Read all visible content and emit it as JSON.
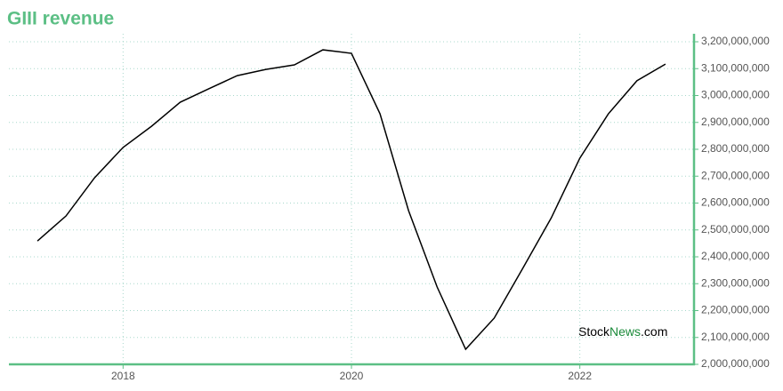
{
  "chart_data": {
    "type": "line",
    "title": "GIII revenue",
    "x": [
      2017.25,
      2017.5,
      2017.75,
      2018.0,
      2018.25,
      2018.5,
      2018.75,
      2019.0,
      2019.25,
      2019.5,
      2019.75,
      2020.0,
      2020.25,
      2020.5,
      2020.75,
      2021.0,
      2021.25,
      2021.5,
      2021.75,
      2022.0,
      2022.25,
      2022.5,
      2022.75
    ],
    "series": [
      {
        "name": "GIII revenue",
        "color": "#000000",
        "values": [
          2459000000,
          2552000000,
          2694000000,
          2807000000,
          2886000000,
          2975000000,
          3025000000,
          3074000000,
          3097000000,
          3114000000,
          3170000000,
          3157000000,
          2932000000,
          2572000000,
          2288000000,
          2056000000,
          2172000000,
          2357000000,
          2545000000,
          2767000000,
          2932000000,
          3055000000,
          3117000000
        ]
      }
    ],
    "xlim": [
      2017.0,
      2023.0
    ],
    "xticks": [
      2018,
      2020,
      2022
    ],
    "ylim": [
      2000000000,
      3200000000
    ],
    "yticks": [
      {
        "value": 2000000000,
        "label": "2,000,000,000"
      },
      {
        "value": 2100000000,
        "label": "2,100,000,000"
      },
      {
        "value": 2200000000,
        "label": "2,200,000,000"
      },
      {
        "value": 2300000000,
        "label": "2,300,000,000"
      },
      {
        "value": 2400000000,
        "label": "2,400,000,000"
      },
      {
        "value": 2500000000,
        "label": "2,500,000,000"
      },
      {
        "value": 2600000000,
        "label": "2,600,000,000"
      },
      {
        "value": 2700000000,
        "label": "2,700,000,000"
      },
      {
        "value": 2800000000,
        "label": "2,800,000,000"
      },
      {
        "value": 2900000000,
        "label": "2,900,000,000"
      },
      {
        "value": 3000000000,
        "label": "3,000,000,000"
      },
      {
        "value": 3100000000,
        "label": "3,100,000,000"
      },
      {
        "value": 3200000000,
        "label": "3,200,000,000"
      }
    ],
    "grid": true,
    "axis_color": "#5cbf85",
    "watermark": {
      "parts": [
        "Stock",
        "News",
        ".com"
      ],
      "colors": [
        "#000000",
        "#1a8a3a",
        "#000000"
      ]
    }
  }
}
